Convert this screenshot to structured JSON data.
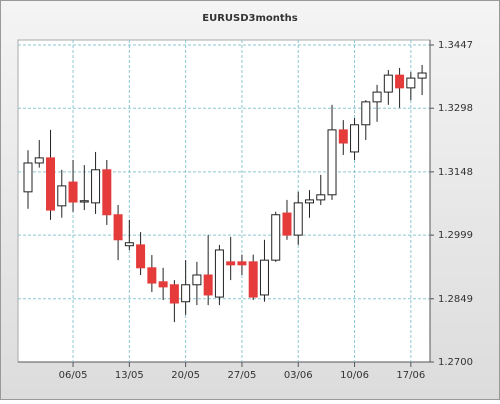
{
  "chart_data": {
    "type": "candlestick",
    "title": "EURUSD3months",
    "categories": [
      null,
      null,
      null,
      null,
      "06/05",
      null,
      null,
      null,
      null,
      "13/05",
      null,
      null,
      null,
      null,
      "20/05",
      null,
      null,
      null,
      null,
      "27/05",
      null,
      null,
      null,
      null,
      "03/06",
      null,
      null,
      null,
      null,
      "10/06",
      null,
      null,
      null,
      null,
      "17/06",
      null
    ],
    "open": [
      1.3101,
      1.3169,
      1.3181,
      1.3068,
      1.3124,
      1.3077,
      1.3075,
      1.3153,
      1.3047,
      1.2974,
      1.2976,
      1.2922,
      1.2889,
      1.2882,
      1.2842,
      1.2882,
      1.2905,
      1.2853,
      1.2936,
      1.2936,
      1.2936,
      1.2858,
      1.294,
      1.3051,
      1.2999,
      1.3075,
      1.3082,
      1.3094,
      1.3247,
      1.3195,
      1.3259,
      1.3313,
      1.3336,
      1.3376,
      1.3346,
      1.3369
    ],
    "high": [
      1.3199,
      1.3223,
      1.3247,
      1.3153,
      1.3176,
      1.3164,
      1.3195,
      1.3176,
      1.307,
      1.3035,
      1.3006,
      1.2952,
      1.2922,
      1.2893,
      1.294,
      1.2936,
      1.2999,
      1.2976,
      1.2995,
      1.2953,
      1.2953,
      1.2988,
      1.3054,
      1.3082,
      1.3101,
      1.3105,
      1.3141,
      1.3306,
      1.327,
      1.3275,
      1.3317,
      1.3353,
      1.3388,
      1.3393,
      1.3383,
      1.34
    ],
    "low": [
      1.3061,
      1.3158,
      1.3035,
      1.304,
      1.3054,
      1.3058,
      1.3049,
      1.3023,
      1.294,
      1.2964,
      1.2905,
      1.2865,
      1.2846,
      1.2794,
      1.2811,
      1.2834,
      1.2834,
      1.2834,
      1.2893,
      1.2905,
      1.2846,
      1.2842,
      1.2936,
      1.2988,
      1.2976,
      1.304,
      1.307,
      1.3082,
      1.3188,
      1.3176,
      1.3223,
      1.3266,
      1.3306,
      1.3299,
      1.3317,
      1.3329
    ],
    "close": [
      1.3169,
      1.3181,
      1.3058,
      1.3115,
      1.3077,
      1.308,
      1.3153,
      1.3047,
      1.2988,
      1.2981,
      1.2922,
      1.2886,
      1.2877,
      1.2839,
      1.2882,
      1.2905,
      1.2858,
      1.2964,
      1.2929,
      1.2929,
      1.2853,
      1.294,
      1.3047,
      1.2999,
      1.3075,
      1.3082,
      1.3094,
      1.3247,
      1.3216,
      1.3259,
      1.3313,
      1.3336,
      1.3376,
      1.3346,
      1.3369,
      1.3381
    ],
    "up_color": "#ffffff",
    "down_color": "#e53b3b",
    "ylim": [
      1.27,
      1.3447
    ],
    "yticks": [
      {
        "value": 1.27,
        "label": "1.2700"
      },
      1.2849,
      1.2999,
      1.3148,
      1.3298,
      1.3447
    ],
    "grid": true
  }
}
